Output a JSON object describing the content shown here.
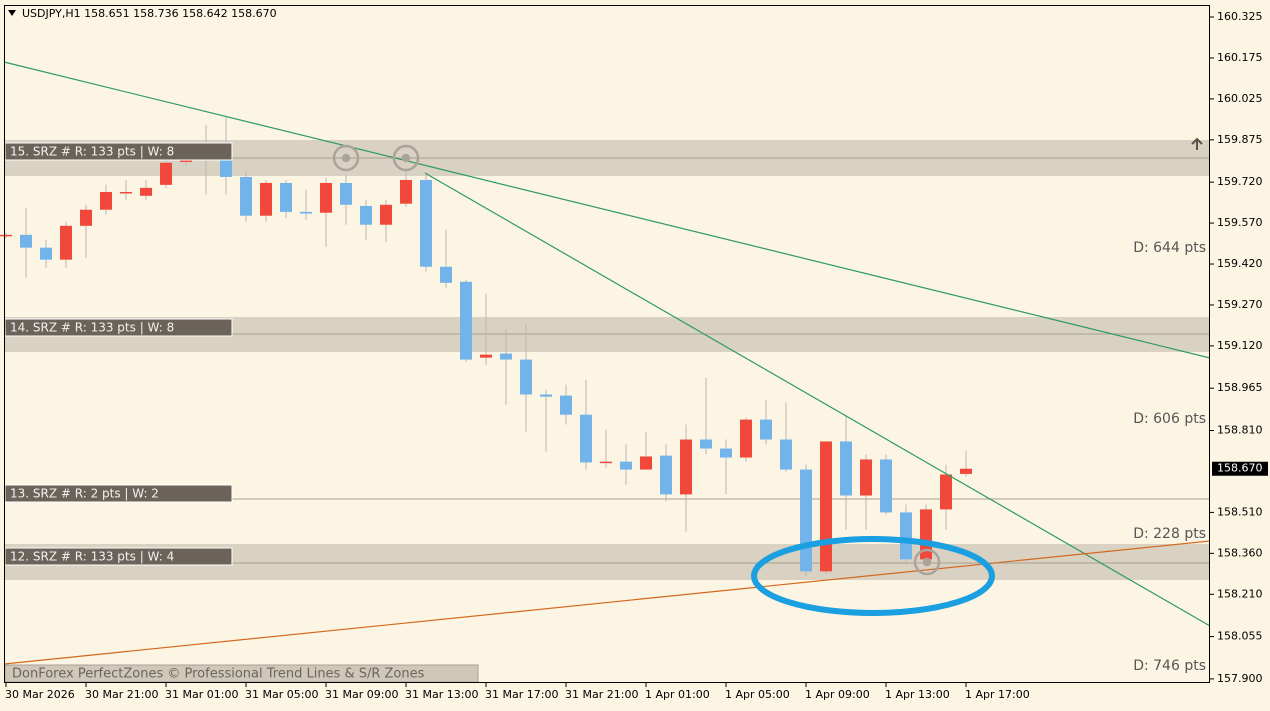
{
  "chart_data": {
    "type": "candlestick",
    "title": "USDJPY,H1  158.651 158.736 158.642 158.670",
    "categories": [
      "30 Mar 2026",
      null,
      null,
      null,
      "30 Mar 21:00",
      null,
      null,
      null,
      "31 Mar 01:00",
      null,
      null,
      null,
      "31 Mar 05:00",
      null,
      null,
      null,
      "31 Mar 09:00",
      null,
      null,
      null,
      "31 Mar 13:00",
      null,
      null,
      null,
      "31 Mar 17:00",
      null,
      null,
      null,
      "31 Mar 21:00",
      null,
      null,
      null,
      "1 Apr 01:00",
      null,
      null,
      null,
      "1 Apr 05:00",
      null,
      null,
      null,
      "1 Apr 09:00",
      null,
      null,
      null,
      "1 Apr 13:00",
      null,
      null,
      null,
      "1 Apr 17:00"
    ],
    "open": [
      159.523,
      159.527,
      159.48,
      159.436,
      159.56,
      159.619,
      159.681,
      159.67,
      159.71,
      159.794,
      159.809,
      159.805,
      159.739,
      159.597,
      159.717,
      159.611,
      159.608,
      159.717,
      159.633,
      159.564,
      159.641,
      159.728,
      159.41,
      159.355,
      159.077,
      159.092,
      159.07,
      158.942,
      158.938,
      158.868,
      158.696,
      158.696,
      158.667,
      158.718,
      158.576,
      158.777,
      158.744,
      158.711,
      158.85,
      158.777,
      158.667,
      158.294,
      158.77,
      158.572,
      158.704,
      158.51,
      158.338,
      158.521,
      158.651
    ],
    "high": [
      159.535,
      159.626,
      159.509,
      159.575,
      159.637,
      159.71,
      159.728,
      159.728,
      159.802,
      159.864,
      159.93,
      159.959,
      159.758,
      159.728,
      159.728,
      159.692,
      159.736,
      159.747,
      159.655,
      159.655,
      159.765,
      159.747,
      159.545,
      159.362,
      159.311,
      159.179,
      159.198,
      158.96,
      158.978,
      158.996,
      158.813,
      158.759,
      158.806,
      158.759,
      158.832,
      159.004,
      158.777,
      158.857,
      158.923,
      158.912,
      158.685,
      158.77,
      158.868,
      158.722,
      158.722,
      158.539,
      158.539,
      158.685,
      158.736
    ],
    "low": [
      159.515,
      159.37,
      159.406,
      159.406,
      159.443,
      159.6,
      159.655,
      159.655,
      159.699,
      159.783,
      159.674,
      159.674,
      159.575,
      159.575,
      159.589,
      159.582,
      159.483,
      159.564,
      159.509,
      159.501,
      159.63,
      159.392,
      159.333,
      159.062,
      159.051,
      158.905,
      158.806,
      158.733,
      158.832,
      158.667,
      158.674,
      158.612,
      158.667,
      158.55,
      158.44,
      158.722,
      158.576,
      158.696,
      158.759,
      158.66,
      158.279,
      158.283,
      158.447,
      158.447,
      158.502,
      158.319,
      158.319,
      158.447,
      158.642
    ],
    "close": [
      159.527,
      159.48,
      159.436,
      159.56,
      159.619,
      159.684,
      159.684,
      159.699,
      159.791,
      159.809,
      159.805,
      159.739,
      159.597,
      159.717,
      159.611,
      159.605,
      159.717,
      159.637,
      159.564,
      159.637,
      159.728,
      159.41,
      159.351,
      159.07,
      159.088,
      159.07,
      158.942,
      158.934,
      158.868,
      158.693,
      158.696,
      158.667,
      158.715,
      158.576,
      158.777,
      158.744,
      158.711,
      158.85,
      158.777,
      158.667,
      158.294,
      158.77,
      158.572,
      158.704,
      158.51,
      158.338,
      158.521,
      158.649,
      158.67
    ],
    "up_color": "#f0483a",
    "down_color": "#72b4ea",
    "ylim": [
      157.885,
      160.369
    ],
    "yticks": [
      160.325,
      160.175,
      160.025,
      159.875,
      {
        "value": 159.72,
        "label": "159.720"
      },
      {
        "value": 159.57,
        "label": "159.570"
      },
      {
        "value": 159.42,
        "label": "159.420"
      },
      {
        "value": 159.27,
        "label": "159.270"
      },
      {
        "value": 159.12,
        "label": "159.120"
      },
      158.965,
      {
        "value": 158.81,
        "label": "158.810"
      },
      {
        "value": 158.51,
        "label": "158.510"
      },
      {
        "value": 158.36,
        "label": "158.360"
      },
      {
        "value": 158.21,
        "label": "158.210"
      },
      158.055,
      {
        "value": 157.9,
        "label": "157.900"
      }
    ],
    "current_price": {
      "value": 158.67,
      "label": "158.670"
    },
    "zones": [
      "15. SRZ # R: 133 pts | W: 8",
      "14. SRZ # R: 133 pts | W: 8",
      "13. SRZ # R: 2 pts | W: 2",
      "12. SRZ # R: 133 pts | W: 4"
    ],
    "distance_labels": [
      "D: 644 pts",
      "D: 606 pts",
      "D: 228 pts",
      "D: 746 pts"
    ],
    "footer": "DonForex PerfectZones © Professional Trend Lines & S/R Zones"
  }
}
